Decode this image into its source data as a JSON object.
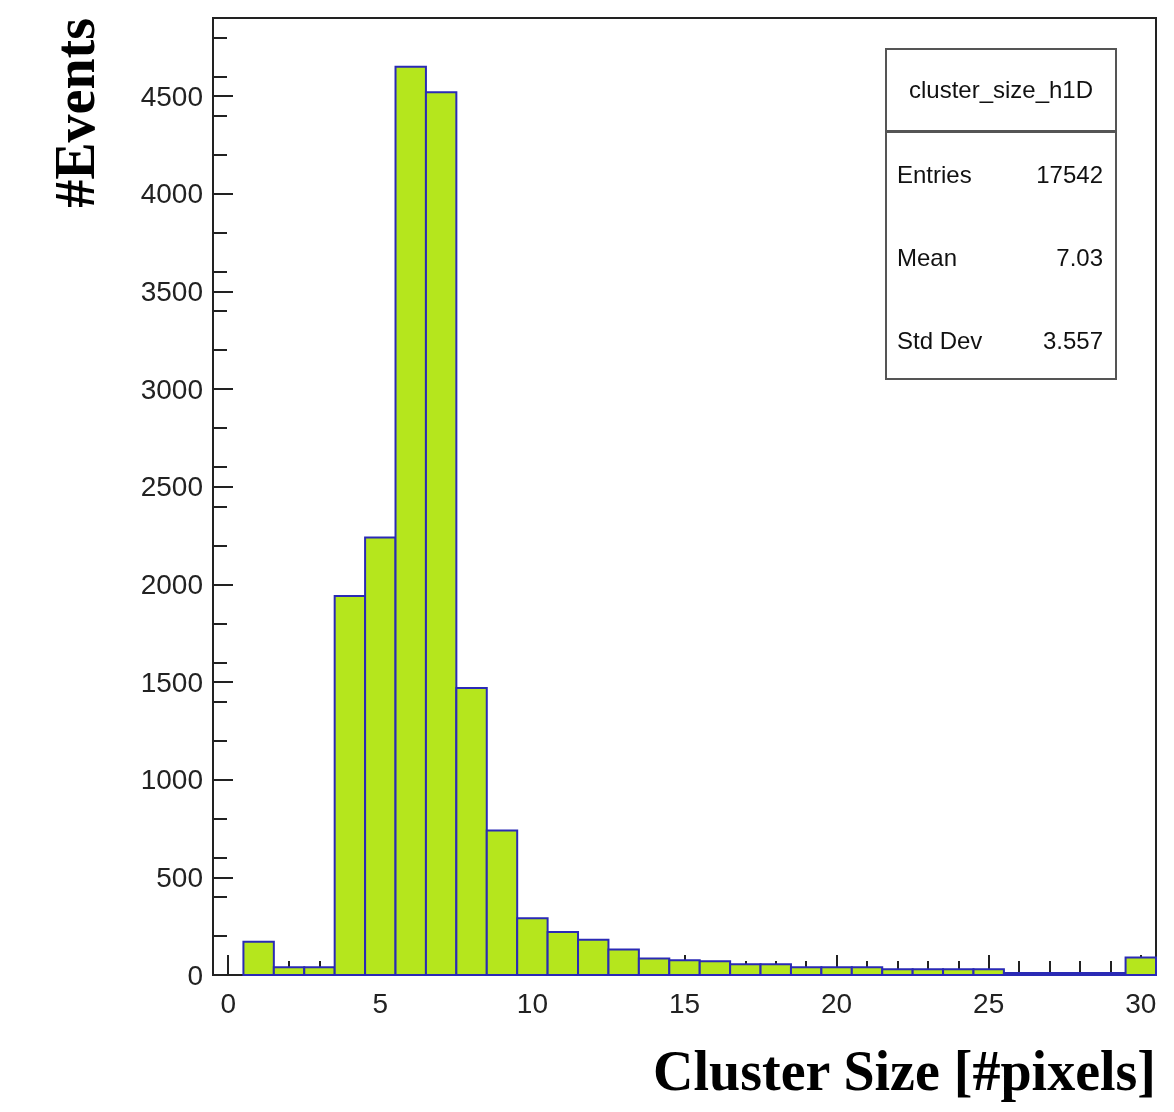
{
  "chart_data": {
    "type": "histogram",
    "xlabel": "Cluster Size [#pixels]",
    "ylabel": "#Events",
    "bins": [
      -0.5,
      0.5,
      1.5,
      2.5,
      3.5,
      4.5,
      5.5,
      6.5,
      7.5,
      8.5,
      9.5,
      10.5,
      11.5,
      12.5,
      13.5,
      14.5,
      15.5,
      16.5,
      17.5,
      18.5,
      19.5,
      20.5,
      21.5,
      22.5,
      23.5,
      24.5,
      25.5,
      26.5,
      27.5,
      28.5,
      29.5,
      30.5
    ],
    "values": [
      0,
      170,
      40,
      40,
      1940,
      2240,
      4650,
      4520,
      1470,
      740,
      290,
      220,
      180,
      130,
      85,
      75,
      70,
      55,
      55,
      40,
      40,
      40,
      30,
      30,
      30,
      30,
      10,
      10,
      10,
      10,
      90
    ],
    "color": "#b5e61d",
    "xlim": [
      -0.5,
      30.5
    ],
    "xticks": [
      0,
      5,
      10,
      15,
      20,
      25,
      30
    ],
    "ylim": [
      0,
      4900
    ],
    "yticks": [
      0,
      500,
      1000,
      1500,
      2000,
      2500,
      3000,
      3500,
      4000,
      4500
    ],
    "grid": false,
    "annotations": [
      "cluster_size_h1D",
      "Entries",
      "17542",
      "Mean",
      "7.03",
      "Std Dev",
      "3.557"
    ]
  }
}
